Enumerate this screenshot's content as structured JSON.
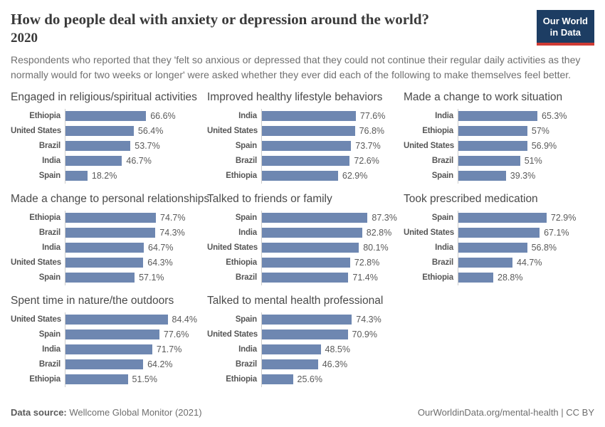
{
  "header": {
    "title": "How do people deal with anxiety or depression around the world?",
    "year": "2020",
    "subtitle": "Respondents who reported that they 'felt so anxious or depressed that they could not continue their regular daily activities as they normally would for two weeks or longer' were asked whether they ever did each of the following to make themselves feel better.",
    "logo": {
      "line1": "Our World",
      "line2": "in Data"
    }
  },
  "colors": {
    "bar": "#6e87b1",
    "logo_bg": "#1d3d63",
    "logo_accent": "#cf3b34",
    "axis_line": "#cccccc"
  },
  "chart_data": [
    {
      "type": "bar",
      "orientation": "horizontal",
      "title": "Engaged in religious/spiritual activities",
      "categories": [
        "Ethiopia",
        "United States",
        "Brazil",
        "India",
        "Spain"
      ],
      "values": [
        66.6,
        56.4,
        53.7,
        46.7,
        18.2
      ],
      "value_labels": [
        "66.6%",
        "56.4%",
        "53.7%",
        "46.7%",
        "18.2%"
      ],
      "xlim": [
        0,
        100
      ],
      "grid": false,
      "legend": false
    },
    {
      "type": "bar",
      "orientation": "horizontal",
      "title": "Improved healthy lifestyle behaviors",
      "categories": [
        "India",
        "United States",
        "Spain",
        "Brazil",
        "Ethiopia"
      ],
      "values": [
        77.6,
        76.8,
        73.7,
        72.6,
        62.9
      ],
      "value_labels": [
        "77.6%",
        "76.8%",
        "73.7%",
        "72.6%",
        "62.9%"
      ],
      "xlim": [
        0,
        100
      ],
      "grid": false,
      "legend": false
    },
    {
      "type": "bar",
      "orientation": "horizontal",
      "title": "Made a change to work situation",
      "categories": [
        "India",
        "Ethiopia",
        "United States",
        "Brazil",
        "Spain"
      ],
      "values": [
        65.3,
        57,
        56.9,
        51,
        39.3
      ],
      "value_labels": [
        "65.3%",
        "57%",
        "56.9%",
        "51%",
        "39.3%"
      ],
      "xlim": [
        0,
        100
      ],
      "grid": false,
      "legend": false
    },
    {
      "type": "bar",
      "orientation": "horizontal",
      "title": "Made a change to personal relationships",
      "categories": [
        "Ethiopia",
        "Brazil",
        "India",
        "United States",
        "Spain"
      ],
      "values": [
        74.7,
        74.3,
        64.7,
        64.3,
        57.1
      ],
      "value_labels": [
        "74.7%",
        "74.3%",
        "64.7%",
        "64.3%",
        "57.1%"
      ],
      "xlim": [
        0,
        100
      ],
      "grid": false,
      "legend": false
    },
    {
      "type": "bar",
      "orientation": "horizontal",
      "title": "Talked to friends or family",
      "categories": [
        "Spain",
        "India",
        "United States",
        "Ethiopia",
        "Brazil"
      ],
      "values": [
        87.3,
        82.8,
        80.1,
        72.8,
        71.4
      ],
      "value_labels": [
        "87.3%",
        "82.8%",
        "80.1%",
        "72.8%",
        "71.4%"
      ],
      "xlim": [
        0,
        100
      ],
      "grid": false,
      "legend": false
    },
    {
      "type": "bar",
      "orientation": "horizontal",
      "title": "Took prescribed medication",
      "categories": [
        "Spain",
        "United States",
        "India",
        "Brazil",
        "Ethiopia"
      ],
      "values": [
        72.9,
        67.1,
        56.8,
        44.7,
        28.8
      ],
      "value_labels": [
        "72.9%",
        "67.1%",
        "56.8%",
        "44.7%",
        "28.8%"
      ],
      "xlim": [
        0,
        100
      ],
      "grid": false,
      "legend": false
    },
    {
      "type": "bar",
      "orientation": "horizontal",
      "title": "Spent time in nature/the outdoors",
      "categories": [
        "United States",
        "Spain",
        "India",
        "Brazil",
        "Ethiopia"
      ],
      "values": [
        84.4,
        77.6,
        71.7,
        64.2,
        51.5
      ],
      "value_labels": [
        "84.4%",
        "77.6%",
        "71.7%",
        "64.2%",
        "51.5%"
      ],
      "xlim": [
        0,
        100
      ],
      "grid": false,
      "legend": false
    },
    {
      "type": "bar",
      "orientation": "horizontal",
      "title": "Talked to mental health professional",
      "categories": [
        "Spain",
        "United States",
        "India",
        "Brazil",
        "Ethiopia"
      ],
      "values": [
        74.3,
        70.9,
        48.5,
        46.3,
        25.6
      ],
      "value_labels": [
        "74.3%",
        "70.9%",
        "48.5%",
        "46.3%",
        "25.6%"
      ],
      "xlim": [
        0,
        100
      ],
      "grid": false,
      "legend": false
    }
  ],
  "footer": {
    "source_label": "Data source:",
    "source_text": " Wellcome Global Monitor (2021)",
    "credit": "OurWorldinData.org/mental-health | CC BY"
  }
}
